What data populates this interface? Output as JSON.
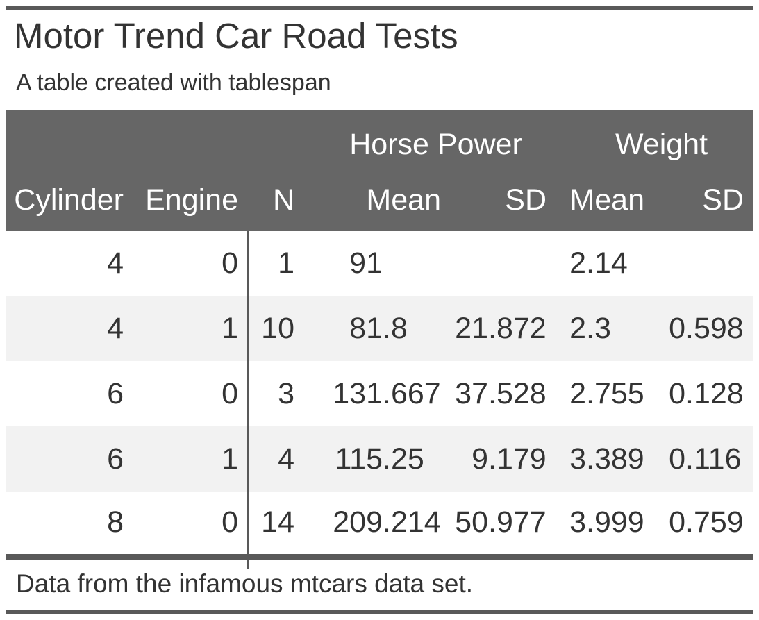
{
  "title": "Motor Trend Car Road Tests",
  "subtitle": "A table created with tablespan",
  "footnote": "Data from the infamous mtcars data set.",
  "colors": {
    "header_bg": "#666666",
    "rule": "#595959",
    "stripe": "#f2f2f2",
    "text": "#333333",
    "header_text": "#ffffff"
  },
  "table": {
    "spanners": [
      {
        "label": "Horse Power"
      },
      {
        "label": "Weight"
      }
    ],
    "columns": [
      "Cylinder",
      "Engine",
      "N",
      "Mean",
      "SD",
      "Mean",
      "SD"
    ],
    "rows": [
      {
        "cylinder": "4",
        "engine": "0",
        "n": "1",
        "hp_mean": [
          "91",
          ""
        ],
        "hp_sd": [
          "",
          ""
        ],
        "wt_mean": [
          "2",
          ".14"
        ],
        "wt_sd": [
          "",
          ""
        ]
      },
      {
        "cylinder": "4",
        "engine": "1",
        "n": "10",
        "hp_mean": [
          "81",
          ".8"
        ],
        "hp_sd": [
          "21",
          ".872"
        ],
        "wt_mean": [
          "2",
          ".3"
        ],
        "wt_sd": [
          "0",
          ".598"
        ]
      },
      {
        "cylinder": "6",
        "engine": "0",
        "n": "3",
        "hp_mean": [
          "131",
          ".667"
        ],
        "hp_sd": [
          "37",
          ".528"
        ],
        "wt_mean": [
          "2",
          ".755"
        ],
        "wt_sd": [
          "0",
          ".128"
        ]
      },
      {
        "cylinder": "6",
        "engine": "1",
        "n": "4",
        "hp_mean": [
          "115",
          ".25"
        ],
        "hp_sd": [
          "9",
          ".179"
        ],
        "wt_mean": [
          "3",
          ".389"
        ],
        "wt_sd": [
          "0",
          ".116"
        ]
      },
      {
        "cylinder": "8",
        "engine": "0",
        "n": "14",
        "hp_mean": [
          "209",
          ".214"
        ],
        "hp_sd": [
          "50",
          ".977"
        ],
        "wt_mean": [
          "3",
          ".999"
        ],
        "wt_sd": [
          "0",
          ".759"
        ]
      }
    ]
  },
  "chart_data": {
    "type": "table",
    "title": "Motor Trend Car Road Tests",
    "subtitle": "A table created with tablespan",
    "footnote": "Data from the infamous mtcars data set.",
    "column_spanners": [
      {
        "label": "Horse Power",
        "columns": [
          "Mean",
          "SD"
        ]
      },
      {
        "label": "Weight",
        "columns": [
          "Mean",
          "SD"
        ]
      }
    ],
    "columns": [
      "Cylinder",
      "Engine",
      "N",
      "Horse Power Mean",
      "Horse Power SD",
      "Weight Mean",
      "Weight SD"
    ],
    "rows": [
      [
        4,
        0,
        1,
        91,
        null,
        2.14,
        null
      ],
      [
        4,
        1,
        10,
        81.8,
        21.872,
        2.3,
        0.598
      ],
      [
        6,
        0,
        3,
        131.667,
        37.528,
        2.755,
        0.128
      ],
      [
        6,
        1,
        4,
        115.25,
        9.179,
        3.389,
        0.116
      ],
      [
        8,
        0,
        14,
        209.214,
        50.977,
        3.999,
        0.759
      ]
    ]
  }
}
